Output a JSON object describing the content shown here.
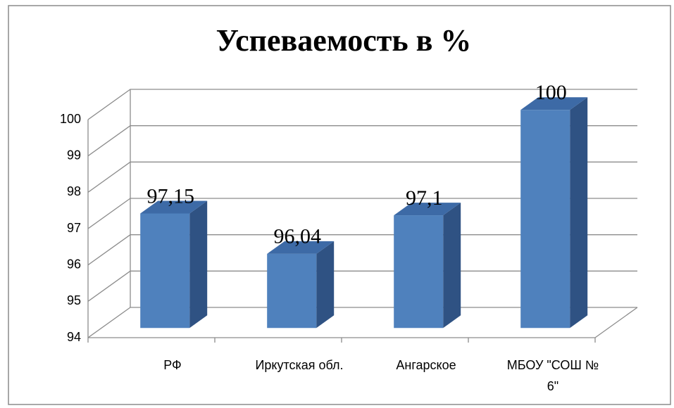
{
  "chart_data": {
    "type": "bar3d",
    "title": "Успеваемость в %",
    "categories": [
      "РФ",
      "Иркутская обл.",
      "Ангарское",
      "МБОУ \"СОШ № 6\""
    ],
    "values": [
      97.15,
      96.04,
      97.1,
      100
    ],
    "value_labels": [
      "97,15",
      "96,04",
      "97,1",
      "100"
    ],
    "color": "#4f81bd",
    "ylim": [
      94,
      100
    ],
    "yticks": [
      94,
      95,
      96,
      97,
      98,
      99,
      100
    ],
    "grid": true
  }
}
